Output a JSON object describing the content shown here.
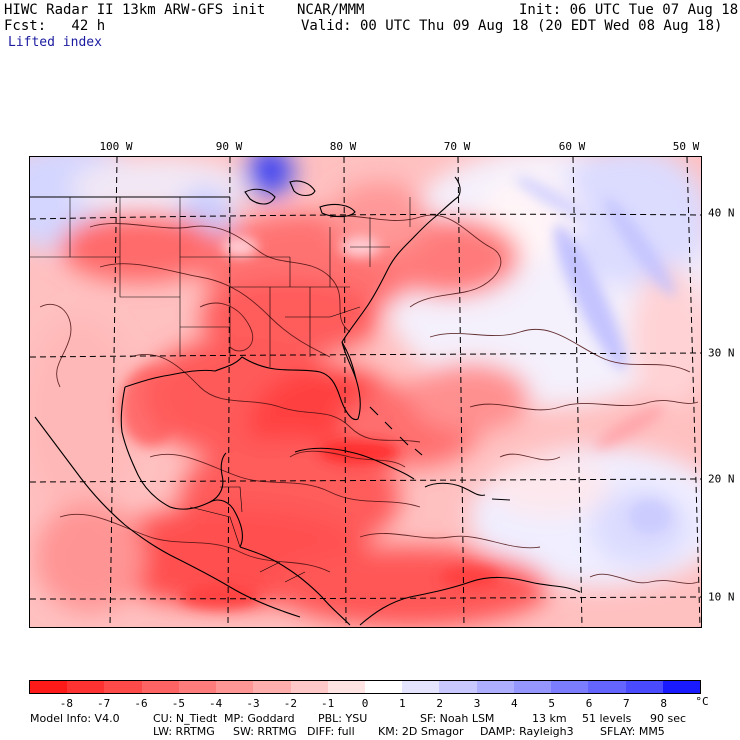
{
  "header": {
    "title": "HIWC Radar II 13km ARW-GFS init",
    "org": "NCAR/MMM",
    "init": "Init: 06 UTC Tue 07 Aug 18",
    "fcst": "Fcst:   42 h",
    "valid": "Valid: 00 UTC Thu 09 Aug 18 (20 EDT Wed 08 Aug 18)",
    "field": "Lifted index"
  },
  "map": {
    "lon_labels": [
      "100 W",
      "90 W",
      "80 W",
      "70 W",
      "60 W",
      "50 W"
    ],
    "lat_labels": [
      "40 N",
      "30 N",
      "20 N",
      "10 N"
    ]
  },
  "colorbar": {
    "tick_labels": [
      "-8",
      "-7",
      "-6",
      "-5",
      "-4",
      "-3",
      "-2",
      "-1",
      "0",
      "1",
      "2",
      "3",
      "4",
      "5",
      "6",
      "7",
      "8"
    ],
    "unit": "°C",
    "colors": [
      "#ff1a1a",
      "#ff3232",
      "#ff4a4a",
      "#ff6464",
      "#ff7c7c",
      "#ff9696",
      "#ffaeae",
      "#ffc8c8",
      "#ffe4e4",
      "#ffffff",
      "#e4e4ff",
      "#c8c8ff",
      "#aeaeff",
      "#9696ff",
      "#7c7cff",
      "#6464ff",
      "#4a4aff",
      "#1a1aff"
    ]
  },
  "footer": {
    "line1": {
      "model_info": "Model Info: V4.0",
      "cu": "CU: N_Tiedt",
      "mp": "MP: Goddard",
      "pbl": "PBL: YSU",
      "sf": "SF: Noah LSM",
      "res": "13 km",
      "levels": "51 levels",
      "dt": "90 sec"
    },
    "line2": {
      "lw": "LW: RRTMG",
      "sw": "SW: RRTMG",
      "diff": "DIFF: full",
      "km": "KM: 2D Smagor",
      "damp": "DAMP: Rayleigh3",
      "sflay": "SFLAY: MM5"
    }
  }
}
